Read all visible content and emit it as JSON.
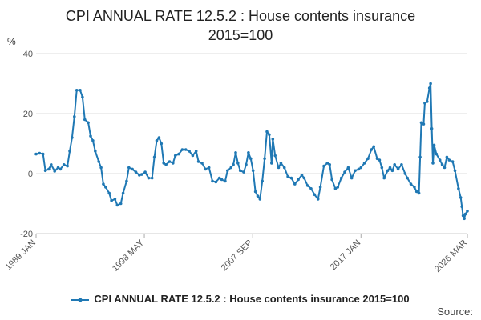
{
  "chart_data": {
    "type": "line",
    "title_line1": "CPI ANNUAL RATE 12.5.2 : House contents insurance",
    "title_line2": "2015=100",
    "ylabel": "%",
    "ylim": [
      -20,
      40
    ],
    "yticks": [
      -20,
      0,
      20,
      40
    ],
    "x_start": 1989.0,
    "x_end": 2026.17,
    "xticks": [
      {
        "label": "1989 JAN",
        "x": 1989.0
      },
      {
        "label": "1998 MAY",
        "x": 1998.33
      },
      {
        "label": "2007 SEP",
        "x": 2007.67
      },
      {
        "label": "2017 JAN",
        "x": 2017.0
      },
      {
        "label": "2026 MAR",
        "x": 2026.17
      }
    ],
    "series": [
      {
        "name": "CPI ANNUAL RATE 12.5.2 : House contents insurance 2015=100",
        "color": "#1f78b4",
        "points": [
          [
            1989.0,
            6.5
          ],
          [
            1989.3,
            6.8
          ],
          [
            1989.6,
            6.5
          ],
          [
            1989.8,
            1.0
          ],
          [
            1990.1,
            1.5
          ],
          [
            1990.3,
            3.0
          ],
          [
            1990.6,
            0.8
          ],
          [
            1990.9,
            2.0
          ],
          [
            1991.1,
            1.5
          ],
          [
            1991.4,
            3.0
          ],
          [
            1991.7,
            2.5
          ],
          [
            1991.9,
            7.5
          ],
          [
            1992.1,
            12.0
          ],
          [
            1992.3,
            19.0
          ],
          [
            1992.5,
            27.8
          ],
          [
            1992.8,
            27.8
          ],
          [
            1993.0,
            25.5
          ],
          [
            1993.2,
            18.0
          ],
          [
            1993.5,
            17.0
          ],
          [
            1993.7,
            12.5
          ],
          [
            1993.9,
            11.0
          ],
          [
            1994.1,
            7.5
          ],
          [
            1994.4,
            4.0
          ],
          [
            1994.6,
            2.0
          ],
          [
            1994.8,
            -3.5
          ],
          [
            1995.0,
            -4.5
          ],
          [
            1995.3,
            -6.5
          ],
          [
            1995.5,
            -9.0
          ],
          [
            1995.8,
            -8.5
          ],
          [
            1996.0,
            -10.5
          ],
          [
            1996.3,
            -10.0
          ],
          [
            1996.5,
            -6.5
          ],
          [
            1996.8,
            -2.5
          ],
          [
            1997.0,
            2.0
          ],
          [
            1997.3,
            1.5
          ],
          [
            1997.6,
            0.5
          ],
          [
            1997.9,
            -0.5
          ],
          [
            1998.1,
            -0.3
          ],
          [
            1998.4,
            0.5
          ],
          [
            1998.7,
            -1.5
          ],
          [
            1999.0,
            -1.5
          ],
          [
            1999.2,
            5.5
          ],
          [
            1999.4,
            11.0
          ],
          [
            1999.6,
            12.0
          ],
          [
            1999.8,
            10.0
          ],
          [
            2000.0,
            3.5
          ],
          [
            2000.2,
            3.0
          ],
          [
            2000.5,
            4.0
          ],
          [
            2000.8,
            3.5
          ],
          [
            2001.0,
            6.0
          ],
          [
            2001.3,
            6.5
          ],
          [
            2001.6,
            8.0
          ],
          [
            2001.9,
            8.0
          ],
          [
            2002.2,
            7.5
          ],
          [
            2002.5,
            6.0
          ],
          [
            2002.8,
            7.5
          ],
          [
            2003.0,
            4.0
          ],
          [
            2003.3,
            3.5
          ],
          [
            2003.6,
            1.5
          ],
          [
            2003.9,
            2.0
          ],
          [
            2004.2,
            -2.5
          ],
          [
            2004.5,
            -2.8
          ],
          [
            2004.8,
            -1.5
          ],
          [
            2005.0,
            -2.0
          ],
          [
            2005.3,
            -2.5
          ],
          [
            2005.5,
            1.0
          ],
          [
            2005.8,
            2.0
          ],
          [
            2006.0,
            3.0
          ],
          [
            2006.2,
            7.0
          ],
          [
            2006.4,
            3.5
          ],
          [
            2006.6,
            1.0
          ],
          [
            2006.9,
            0.5
          ],
          [
            2007.1,
            3.0
          ],
          [
            2007.3,
            7.0
          ],
          [
            2007.5,
            5.0
          ],
          [
            2007.7,
            1.0
          ],
          [
            2007.9,
            -6.0
          ],
          [
            2008.1,
            -7.5
          ],
          [
            2008.3,
            -8.5
          ],
          [
            2008.5,
            -2.5
          ],
          [
            2008.7,
            5.0
          ],
          [
            2008.9,
            14.0
          ],
          [
            2009.1,
            13.0
          ],
          [
            2009.3,
            3.5
          ],
          [
            2009.4,
            11.5
          ],
          [
            2009.6,
            6.0
          ],
          [
            2009.9,
            2.0
          ],
          [
            2010.1,
            3.5
          ],
          [
            2010.4,
            2.0
          ],
          [
            2010.7,
            -1.0
          ],
          [
            2011.0,
            -1.5
          ],
          [
            2011.3,
            -3.5
          ],
          [
            2011.6,
            -2.0
          ],
          [
            2011.9,
            -0.5
          ],
          [
            2012.1,
            -1.5
          ],
          [
            2012.4,
            -4.0
          ],
          [
            2012.7,
            -5.0
          ],
          [
            2013.0,
            -7.0
          ],
          [
            2013.3,
            -8.5
          ],
          [
            2013.5,
            -4.5
          ],
          [
            2013.8,
            2.5
          ],
          [
            2014.1,
            3.5
          ],
          [
            2014.3,
            3.0
          ],
          [
            2014.5,
            -2.0
          ],
          [
            2014.8,
            -5.0
          ],
          [
            2015.0,
            -4.5
          ],
          [
            2015.3,
            -1.5
          ],
          [
            2015.6,
            0.5
          ],
          [
            2015.9,
            2.0
          ],
          [
            2016.2,
            -1.5
          ],
          [
            2016.5,
            1.0
          ],
          [
            2016.8,
            1.5
          ],
          [
            2017.0,
            2.0
          ],
          [
            2017.3,
            3.5
          ],
          [
            2017.6,
            5.0
          ],
          [
            2017.9,
            8.0
          ],
          [
            2018.1,
            9.0
          ],
          [
            2018.4,
            5.0
          ],
          [
            2018.6,
            4.5
          ],
          [
            2018.8,
            2.0
          ],
          [
            2019.0,
            -1.5
          ],
          [
            2019.3,
            1.0
          ],
          [
            2019.5,
            2.0
          ],
          [
            2019.7,
            1.0
          ],
          [
            2019.9,
            3.0
          ],
          [
            2020.2,
            1.5
          ],
          [
            2020.5,
            3.0
          ],
          [
            2020.8,
            0.0
          ],
          [
            2021.0,
            -1.5
          ],
          [
            2021.3,
            -3.5
          ],
          [
            2021.6,
            -4.5
          ],
          [
            2021.8,
            -6.0
          ],
          [
            2022.0,
            -6.5
          ],
          [
            2022.1,
            5.5
          ],
          [
            2022.2,
            17.0
          ],
          [
            2022.4,
            16.5
          ],
          [
            2022.5,
            23.5
          ],
          [
            2022.7,
            24.0
          ],
          [
            2022.9,
            28.5
          ],
          [
            2023.0,
            30.0
          ],
          [
            2023.1,
            15.0
          ],
          [
            2023.2,
            3.5
          ],
          [
            2023.3,
            9.5
          ],
          [
            2023.5,
            6.5
          ],
          [
            2023.8,
            4.5
          ],
          [
            2024.0,
            3.0
          ],
          [
            2024.2,
            2.0
          ],
          [
            2024.4,
            5.5
          ],
          [
            2024.6,
            4.5
          ],
          [
            2024.9,
            4.0
          ],
          [
            2025.1,
            1.0
          ],
          [
            2025.4,
            -5.0
          ],
          [
            2025.6,
            -8.0
          ],
          [
            2025.7,
            -11.0
          ],
          [
            2025.8,
            -14.0
          ],
          [
            2025.9,
            -15.0
          ],
          [
            2026.0,
            -13.5
          ],
          [
            2026.17,
            -12.5
          ]
        ]
      }
    ]
  },
  "legend": {
    "label": "CPI ANNUAL RATE 12.5.2 : House contents insurance 2015=100"
  },
  "source": {
    "label": "Source:"
  }
}
